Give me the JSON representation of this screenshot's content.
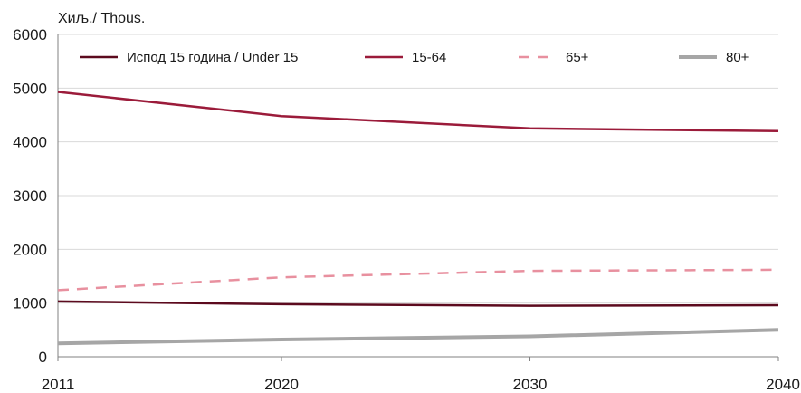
{
  "chart_data": {
    "type": "line",
    "unit_label": "Хиљ./ Thous.",
    "x": [
      2011,
      2020,
      2030,
      2040
    ],
    "x_tick_labels": [
      "2011",
      "2020",
      "2030",
      "2040"
    ],
    "ylim": [
      0,
      6000
    ],
    "y_ticks": [
      0,
      1000,
      2000,
      3000,
      4000,
      5000,
      6000
    ],
    "y_tick_labels": [
      "0",
      "1000",
      "2000",
      "3000",
      "4000",
      "5000",
      "6000"
    ],
    "grid": true,
    "legend_position": "top",
    "series": [
      {
        "name": "Испод 15 година / Under 15",
        "values": [
          1030,
          980,
          950,
          960
        ],
        "color": "#5c0a1e",
        "style": "solid"
      },
      {
        "name": "15-64",
        "values": [
          4930,
          4480,
          4250,
          4200
        ],
        "color": "#9b1b3a",
        "style": "solid"
      },
      {
        "name": "65+",
        "values": [
          1240,
          1480,
          1600,
          1620
        ],
        "color": "#e8909f",
        "style": "dashed"
      },
      {
        "name": "80+",
        "values": [
          250,
          320,
          380,
          500
        ],
        "color": "#a6a6a6",
        "style": "thick"
      }
    ]
  }
}
